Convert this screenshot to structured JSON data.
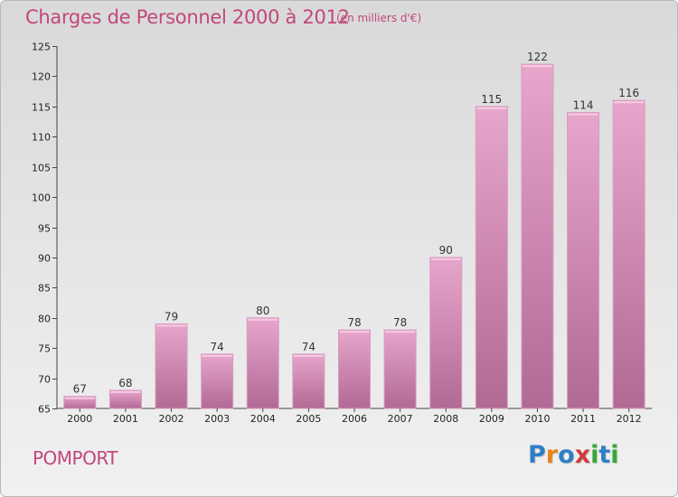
{
  "header": {
    "title": "Charges de Personnel 2000 à 2012",
    "subtitle": "(en milliers d'€)"
  },
  "footer": {
    "commune": "POMPORT",
    "logo_letters": [
      "P",
      "r",
      "o",
      "x",
      "i",
      "t",
      "i"
    ],
    "logo_colors": [
      "#2f7fc4",
      "#e8851b",
      "#2f7fc4",
      "#d33a3a",
      "#3aa63a",
      "#2f7fc4",
      "#3aa63a"
    ]
  },
  "colors": {
    "title": "#c2477a",
    "bar_top": "#e8a6cc",
    "bar_bottom": "#b06a94"
  },
  "chart_data": {
    "type": "bar",
    "title": "Charges de Personnel 2000 à 2012",
    "subtitle": "(en milliers d'€)",
    "categories": [
      "2000",
      "2001",
      "2002",
      "2003",
      "2004",
      "2005",
      "2006",
      "2007",
      "2008",
      "2009",
      "2010",
      "2011",
      "2012"
    ],
    "values": [
      67,
      68,
      79,
      74,
      80,
      74,
      78,
      78,
      90,
      115,
      122,
      114,
      116
    ],
    "value_labels": [
      "67",
      "68",
      "79",
      "74",
      "80",
      "74",
      "78",
      "78",
      "90",
      "115",
      "122",
      "114",
      "116"
    ],
    "ylim": [
      65,
      125
    ],
    "yticks": [
      65,
      70,
      75,
      80,
      85,
      90,
      95,
      100,
      105,
      110,
      115,
      120,
      125
    ],
    "ytick_labels": [
      "65",
      "70",
      "75",
      "80",
      "85",
      "90",
      "95",
      "100",
      "105",
      "110",
      "115",
      "120",
      "125"
    ],
    "xlabel": "",
    "ylabel": "",
    "grid": false,
    "legend": "none"
  }
}
